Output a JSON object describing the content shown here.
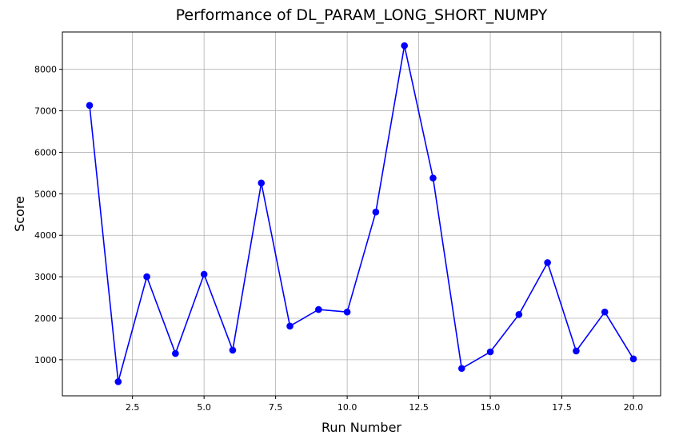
{
  "chart_data": {
    "type": "line",
    "title": "Performance of DL_PARAM_LONG_SHORT_NUMPY",
    "xlabel": "Run Number",
    "ylabel": "Score",
    "xlim": [
      0.05,
      20.95
    ],
    "ylim": [
      130,
      8900
    ],
    "x_ticks": [
      2.5,
      5.0,
      7.5,
      10.0,
      12.5,
      15.0,
      17.5,
      20.0
    ],
    "x_tick_labels": [
      "2.5",
      "5.0",
      "7.5",
      "10.0",
      "12.5",
      "15.0",
      "17.5",
      "20.0"
    ],
    "y_ticks": [
      1000,
      2000,
      3000,
      4000,
      5000,
      6000,
      7000,
      8000
    ],
    "y_tick_labels": [
      "1000",
      "2000",
      "3000",
      "4000",
      "5000",
      "6000",
      "7000",
      "8000"
    ],
    "grid": true,
    "series": [
      {
        "color": "#0000ff",
        "marker": "circle",
        "x": [
          1,
          2,
          3,
          4,
          5,
          6,
          7,
          8,
          9,
          10,
          11,
          12,
          13,
          14,
          15,
          16,
          17,
          18,
          19,
          20
        ],
        "values": [
          7130,
          470,
          3000,
          1150,
          3060,
          1230,
          5260,
          1810,
          2210,
          2150,
          4560,
          8570,
          5380,
          790,
          1190,
          2090,
          3340,
          1210,
          2150,
          1020
        ]
      }
    ]
  }
}
